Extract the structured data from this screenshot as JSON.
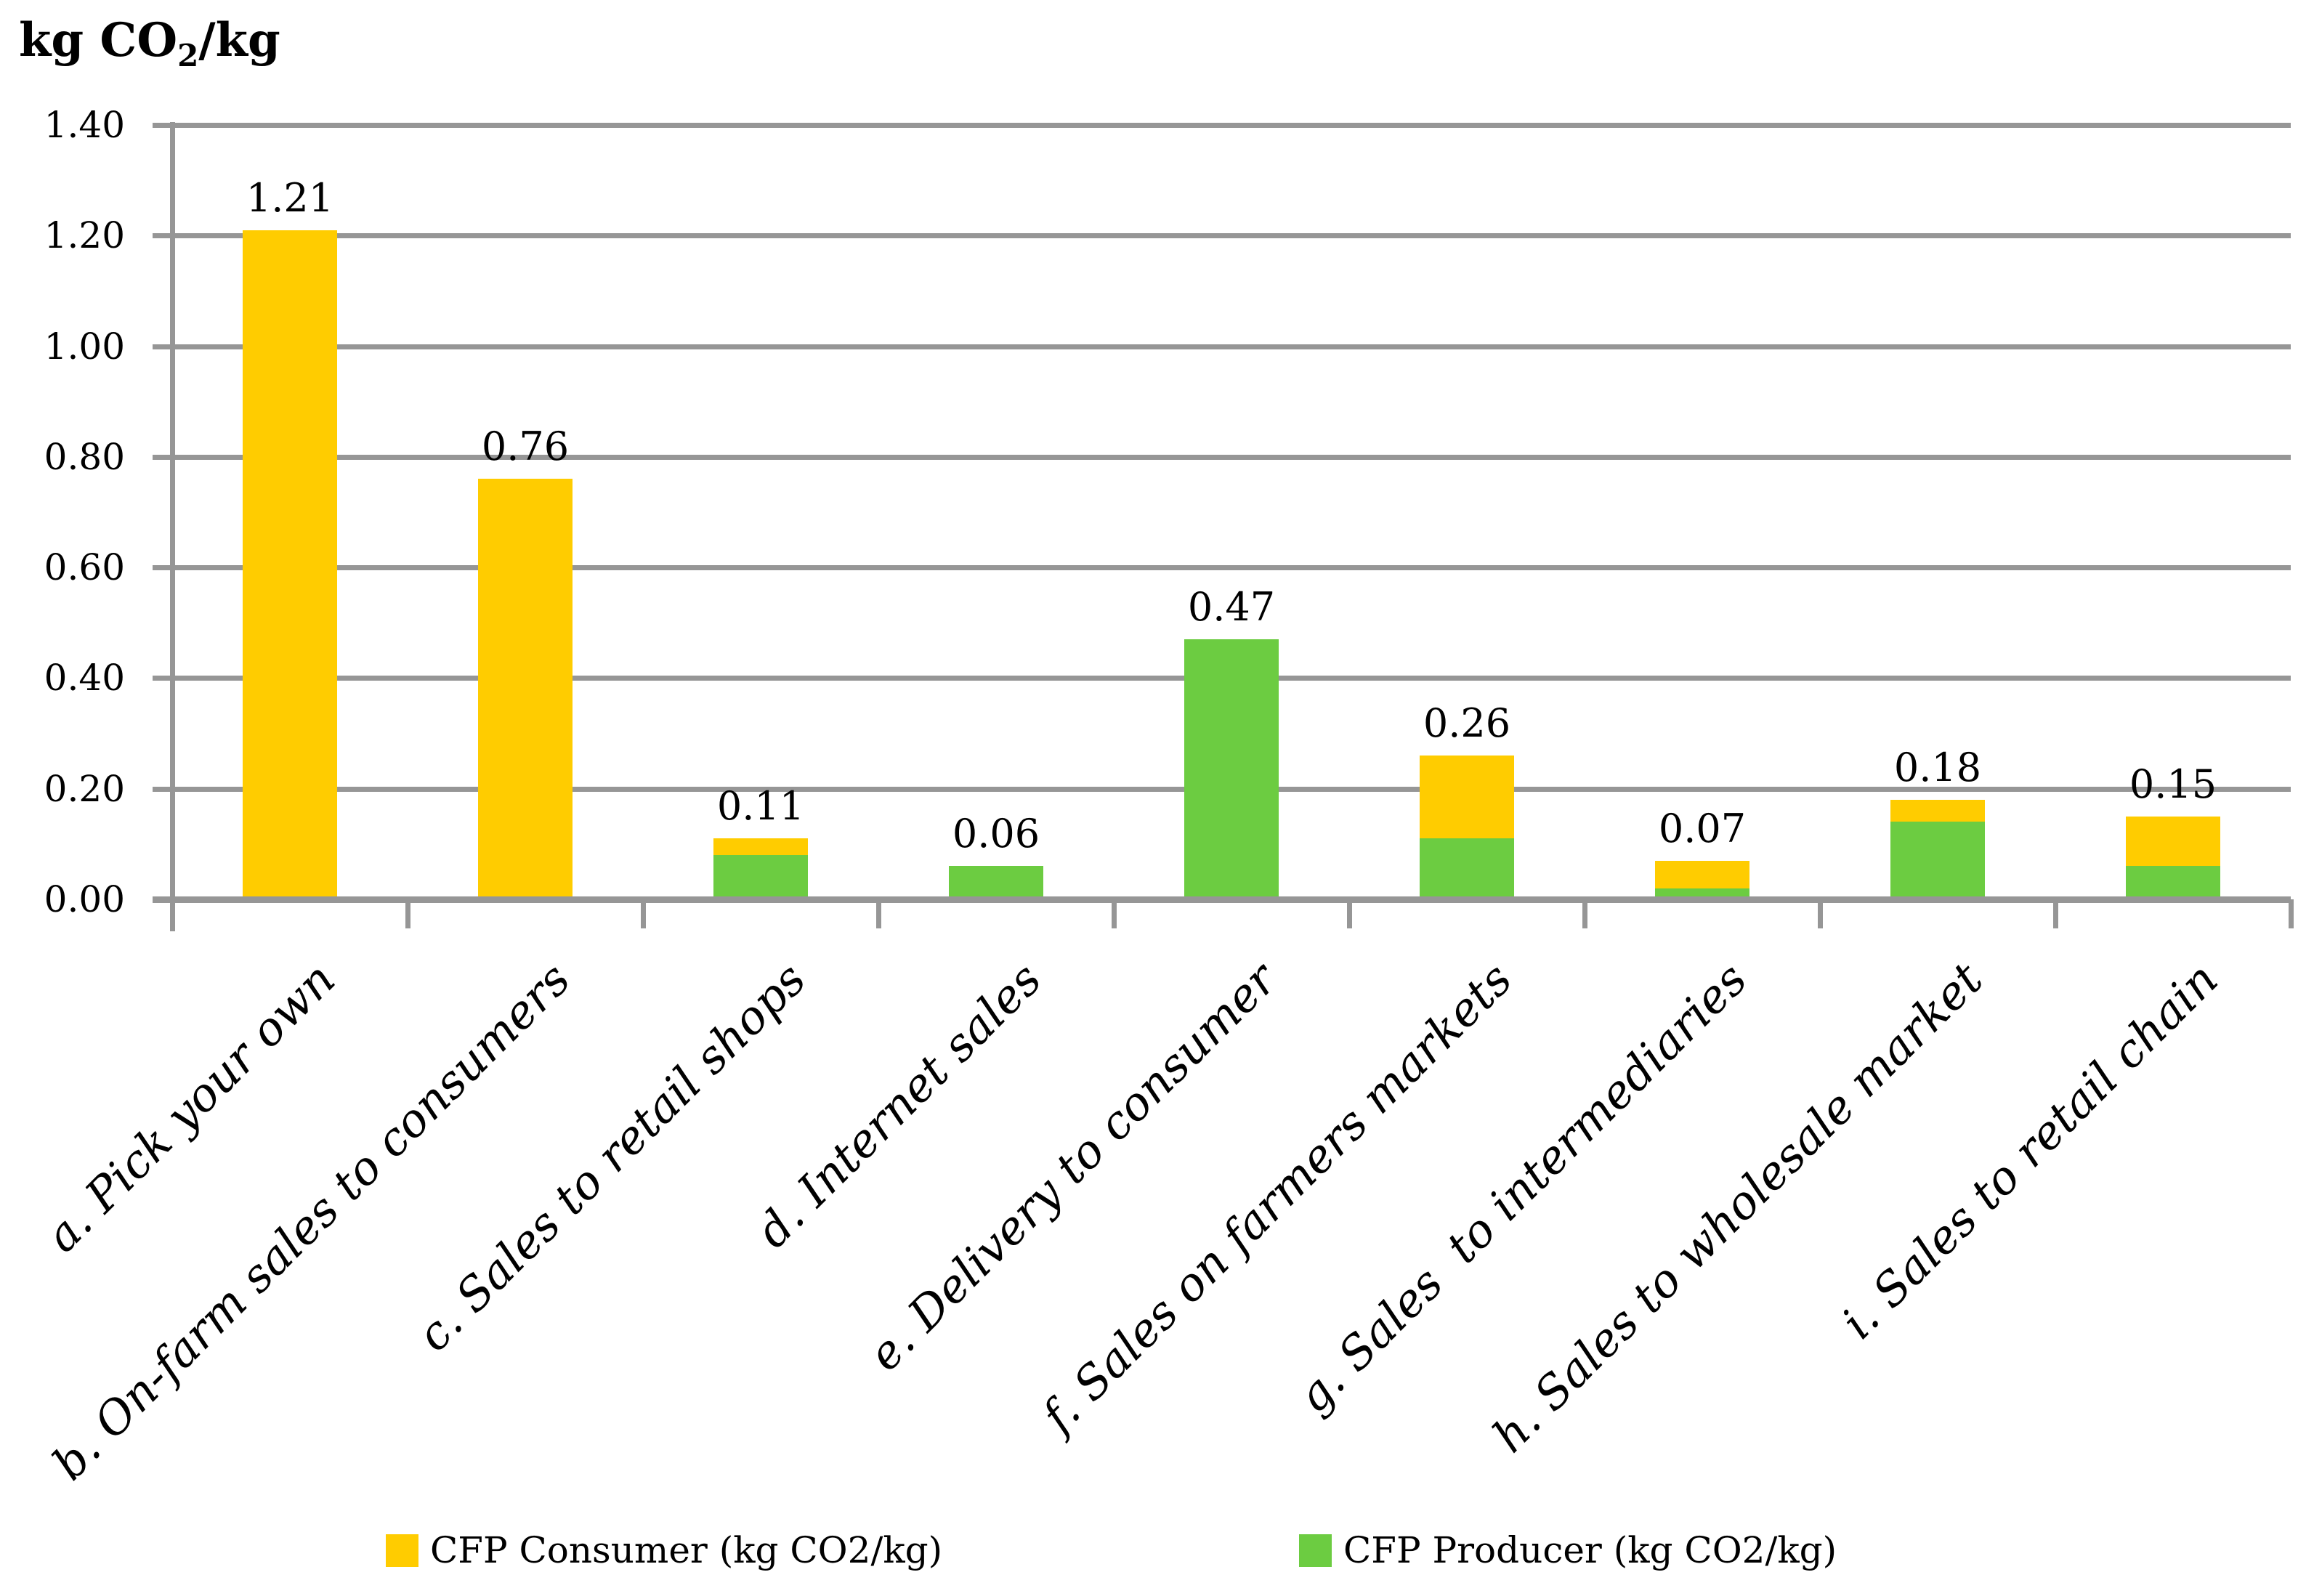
{
  "title": {
    "text_prefix": "kg CO",
    "text_sub": "2",
    "text_suffix": "/kg"
  },
  "chart_data": {
    "type": "bar",
    "stacked": true,
    "title": "kg CO2/kg",
    "categories": [
      "a. Pick your own",
      "b. On-farm sales to consumers",
      "c. Sales to retail shops",
      "d. Internet sales",
      "e. Delivery to consumer",
      "f. Sales on farmers markets",
      "g. Sales  to intermediaries",
      "h. Sales to wholesale market",
      "i. Sales to retail chain"
    ],
    "series": [
      {
        "name": "CFP Producer (kg CO2/kg)",
        "color": "#6CCC41",
        "values": [
          0,
          0,
          0.08,
          0.06,
          0.47,
          0.11,
          0.02,
          0.14,
          0.06
        ]
      },
      {
        "name": "CFP Consumer (kg CO2/kg)",
        "color": "#FFCC00",
        "values": [
          1.21,
          0.76,
          0.03,
          0,
          0,
          0.15,
          0.05,
          0.04,
          0.09
        ]
      }
    ],
    "totals": [
      1.21,
      0.76,
      0.11,
      0.06,
      0.47,
      0.26,
      0.07,
      0.18,
      0.15
    ],
    "total_labels": [
      "1.21",
      "0.76",
      "0.11",
      "0.06",
      "0.47",
      "0.26",
      "0.07",
      "0.18",
      "0.15"
    ],
    "ylim": [
      0,
      1.4
    ],
    "ytick_step": 0.2,
    "ytick_labels": [
      "0.00",
      "0.20",
      "0.40",
      "0.60",
      "0.80",
      "1.00",
      "1.20",
      "1.40"
    ],
    "grid": true,
    "legend_position": "bottom",
    "legend": [
      {
        "label": "CFP Consumer (kg CO2/kg)",
        "color": "#FFCC00"
      },
      {
        "label": "CFP Producer (kg CO2/kg)",
        "color": "#6CCC41"
      }
    ],
    "colors": {
      "grid": "#969696",
      "axis": "#969696",
      "text": "#000000",
      "background": "#FFFFFF"
    }
  }
}
